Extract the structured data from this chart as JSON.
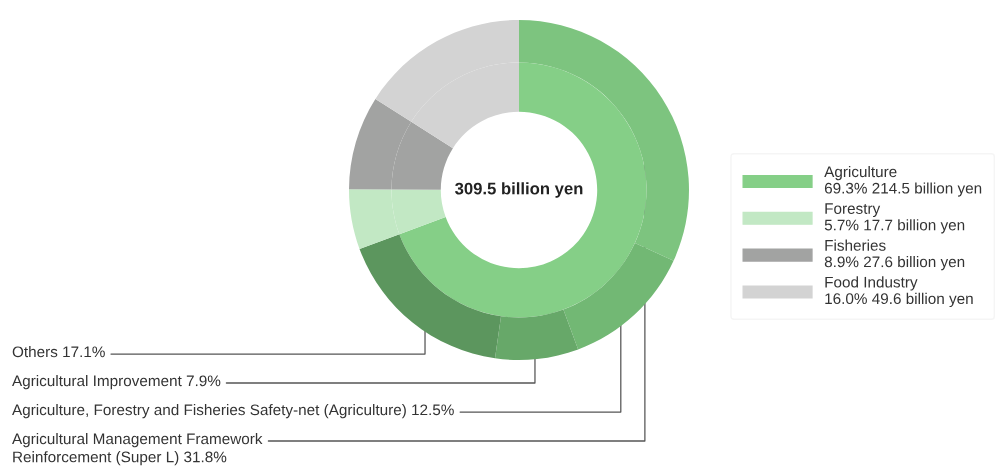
{
  "chart_data": {
    "type": "donut",
    "categories": [
      "Agriculture\n69.3% 214.5 billion yen",
      null,
      null,
      null,
      "Forestry\n5.7% 17.7 billion yen",
      "Fisheries\n8.9% 27.6 billion yen",
      "Food Industry\n16.0% 49.6 billion yen"
    ],
    "series": [
      {
        "values": [
          69.3,
          null,
          null,
          null,
          5.7,
          8.9,
          16.0
        ],
        "colors": [
          "#85cf87",
          null,
          null,
          null,
          "#c2e8c4",
          "#a2a3a2",
          "#d3d3d3"
        ]
      },
      {
        "values": [
          31.8,
          12.5,
          7.9,
          17.1,
          5.7,
          8.9,
          16.0
        ],
        "colors": [
          "#7dc47f",
          "#72b874",
          "#67a869",
          "#5c965e",
          "#c2e8c4",
          "#a2a3a2",
          "#d3d3d3"
        ]
      }
    ],
    "annotations": [
      "309.5 billion yen",
      "Agricultural Management Framework\nReinforcement (Super L) 31.8%",
      "Agriculture, Forestry and Fisheries Safety-net (Agriculture) 12.5%",
      "Agricultural Improvement 7.9%",
      "Others 17.1%"
    ],
    "legend": "right"
  }
}
